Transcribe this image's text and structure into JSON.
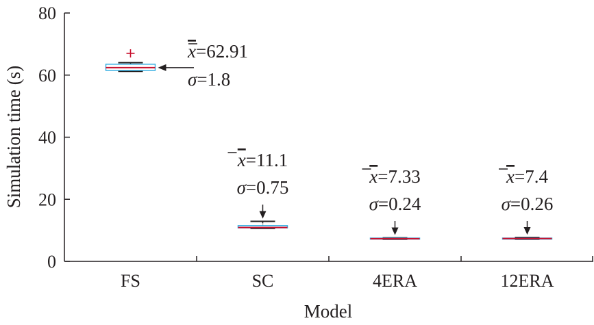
{
  "chart_data": {
    "type": "box",
    "title": "",
    "xlabel": "Model",
    "ylabel": "Simulation time (s)",
    "ylim": [
      0,
      80
    ],
    "yticks": [
      "0",
      "20",
      "40",
      "60",
      "80"
    ],
    "grid": false,
    "categories": [
      "FS",
      "SC",
      "4ERA",
      "12ERA"
    ],
    "boxes": [
      {
        "category": "FS",
        "whisker_low": 61.2,
        "q1": 61.5,
        "median": 62.4,
        "q3": 63.5,
        "whisker_high": 64.0,
        "outliers": [
          67.0
        ]
      },
      {
        "category": "SC",
        "whisker_low": 10.6,
        "q1": 10.8,
        "median": 10.9,
        "q3": 11.5,
        "whisker_high": 12.9,
        "outliers": []
      },
      {
        "category": "4ERA",
        "whisker_low": 7.1,
        "q1": 7.2,
        "median": 7.3,
        "q3": 7.5,
        "whisker_high": 7.6,
        "outliers": []
      },
      {
        "category": "12ERA",
        "whisker_low": 7.1,
        "q1": 7.2,
        "median": 7.35,
        "q3": 7.5,
        "whisker_high": 7.7,
        "outliers": []
      }
    ],
    "annotations": [
      {
        "category": "FS",
        "mean_label": "=62.91",
        "sd_label": "=1.8"
      },
      {
        "category": "SC",
        "mean_label": "=11.1",
        "sd_label": "=0.75"
      },
      {
        "category": "4ERA",
        "mean_label": "=7.33",
        "sd_label": "=0.24"
      },
      {
        "category": "12ERA",
        "mean_label": "=7.4",
        "sd_label": "=0.26"
      }
    ],
    "mean_symbol": "x",
    "sd_symbol": "σ",
    "colors": {
      "box": "#3ab0e2",
      "median": "#c8102e",
      "whisker": "#231f20",
      "outlier": "#c8102e",
      "axis": "#231f20"
    }
  }
}
